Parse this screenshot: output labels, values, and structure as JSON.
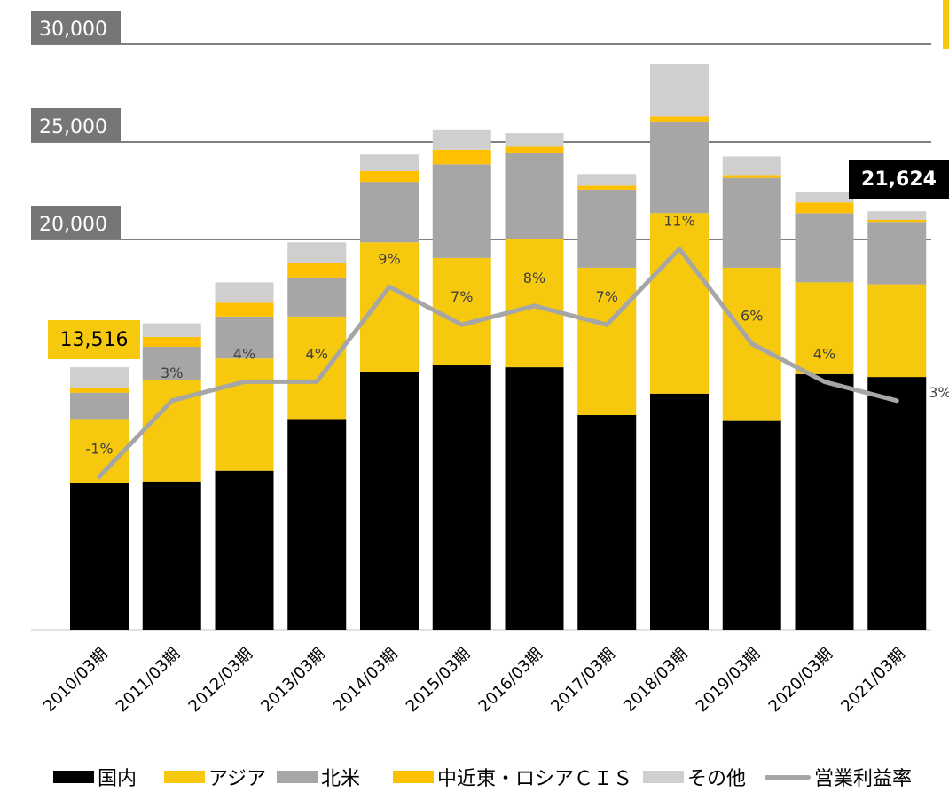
{
  "chart_data": {
    "type": "bar",
    "stacked": true,
    "categories": [
      "2010/03期",
      "2011/03期",
      "2012/03期",
      "2013/03期",
      "2014/03期",
      "2015/03期",
      "2016/03期",
      "2017/03期",
      "2018/03期",
      "2019/03期",
      "2020/03期",
      "2021/03期"
    ],
    "series": [
      {
        "name": "国内",
        "color": "#000000",
        "values": [
          7500,
          7600,
          8150,
          10800,
          13200,
          13550,
          13450,
          11000,
          12100,
          10700,
          13100,
          12950
        ]
      },
      {
        "name": "アジア",
        "color": "#f6c90e",
        "values": [
          3300,
          5200,
          5750,
          5250,
          6650,
          5500,
          6550,
          7550,
          9250,
          7850,
          4700,
          4750
        ]
      },
      {
        "name": "北米",
        "color": "#a8a6a4",
        "values": [
          1350,
          1700,
          2150,
          2000,
          3100,
          4800,
          4450,
          4000,
          4700,
          4600,
          3550,
          3200
        ]
      },
      {
        "name": "中近東・ロシアＣＩＳ",
        "color": "#ffc000",
        "values": [
          250,
          500,
          700,
          750,
          550,
          750,
          300,
          200,
          250,
          150,
          550,
          100
        ]
      },
      {
        "name": "その他",
        "color": "#d0cfce",
        "values": [
          1050,
          700,
          1050,
          1050,
          850,
          1000,
          700,
          600,
          2700,
          950,
          550,
          450
        ]
      }
    ],
    "line_series": {
      "name": "営業利益率",
      "color": "#a6a6a6",
      "values": [
        -1,
        3,
        4,
        4,
        9,
        7,
        8,
        7,
        11,
        6,
        4,
        3
      ],
      "labels": [
        "-1%",
        "3%",
        "4%",
        "4%",
        "9%",
        "7%",
        "8%",
        "7%",
        "11%",
        "6%",
        "4%",
        "3%"
      ]
    },
    "y_ticks": [
      "30,000",
      "25,000",
      "20,000"
    ],
    "y_tick_values": [
      30000,
      25000,
      20000
    ],
    "ylim": [
      0,
      30000
    ],
    "callouts": {
      "first": "13,516",
      "last": "21,624"
    },
    "legend_position": "bottom",
    "title": "",
    "xlabel": "",
    "ylabel": ""
  }
}
